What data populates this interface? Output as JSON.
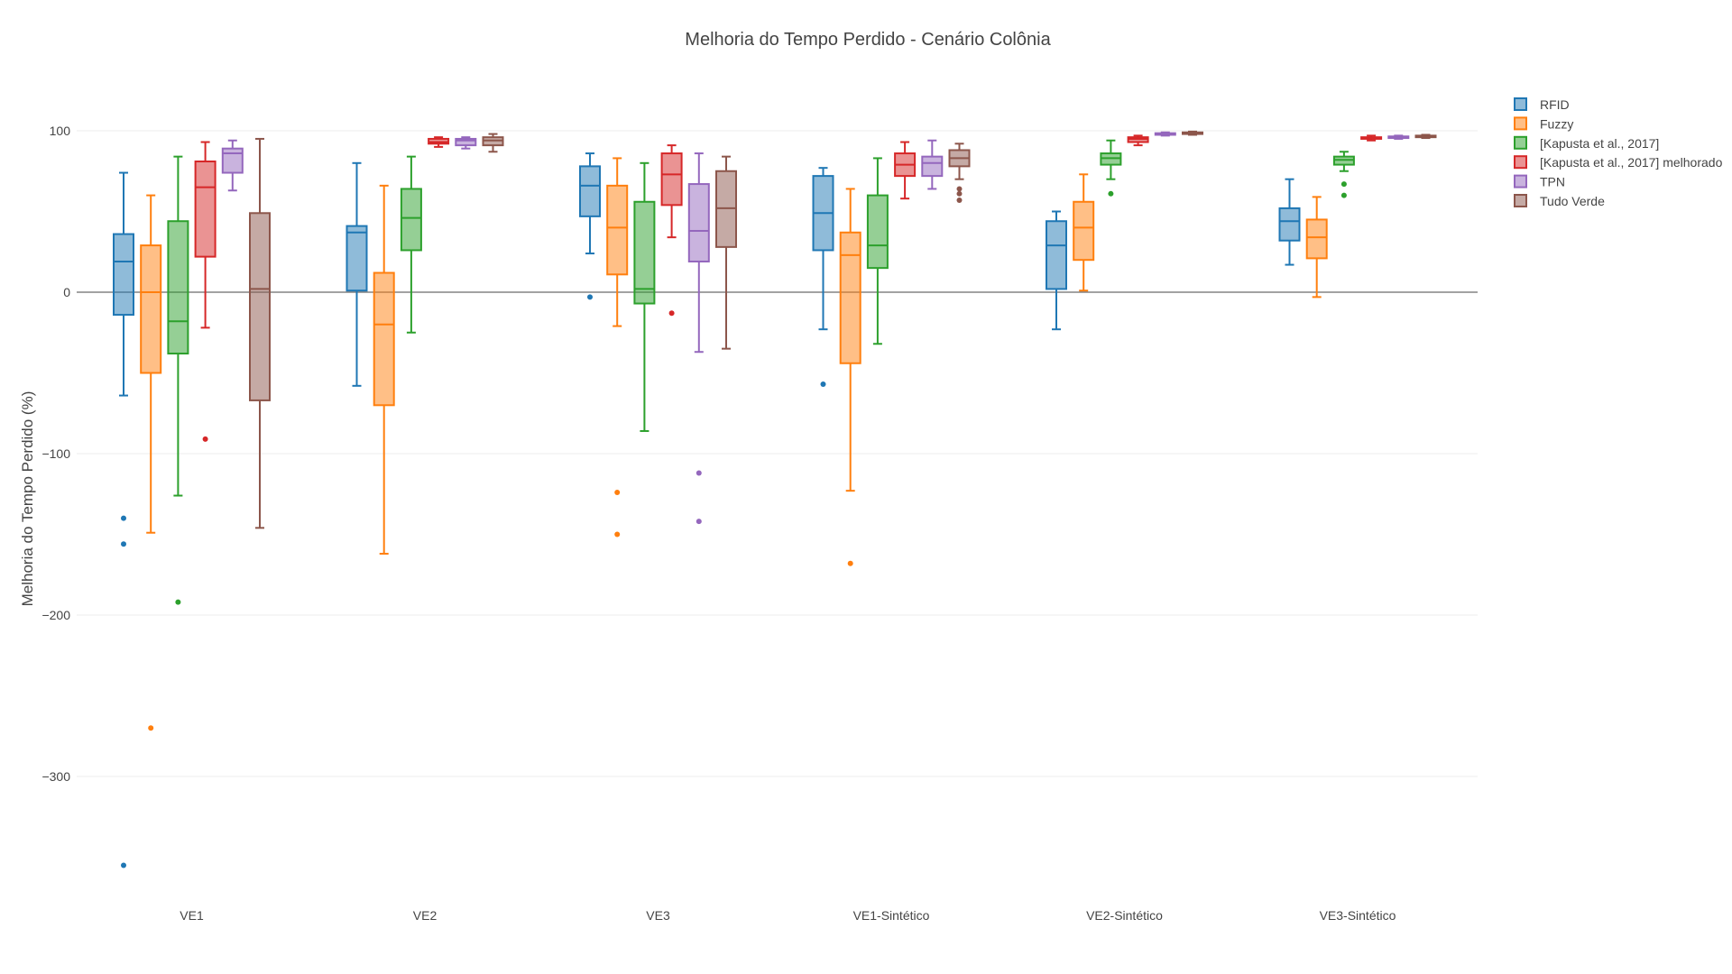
{
  "chart_data": {
    "type": "box",
    "title": "Melhoria do Tempo Perdido - Cenário Colônia",
    "xlabel": "",
    "ylabel": "Melhoria do Tempo Perdido (%)",
    "ylim": [
      -370,
      115
    ],
    "yticks": [
      100,
      0,
      -100,
      -200,
      -300
    ],
    "ytick_labels": [
      "100",
      "0",
      "−100",
      "−200",
      "−300"
    ],
    "grid": true,
    "legend_position": "top-right",
    "categories": [
      "VE1",
      "VE2",
      "VE3",
      "VE1-Sintético",
      "VE2-Sintético",
      "VE3-Sintético"
    ],
    "series": [
      {
        "name": "RFID",
        "color": "#1f77b4",
        "boxes": [
          {
            "category": "VE1",
            "lower_whisker": -64,
            "q1": -14,
            "median": 19,
            "q3": 36,
            "upper_whisker": 74,
            "outliers": [
              -140,
              -156,
              -355
            ]
          },
          {
            "category": "VE2",
            "lower_whisker": -58,
            "q1": 1,
            "median": 37,
            "q3": 41,
            "upper_whisker": 80,
            "outliers": []
          },
          {
            "category": "VE3",
            "lower_whisker": 24,
            "q1": 47,
            "median": 66,
            "q3": 78,
            "upper_whisker": 86,
            "outliers": [
              -3
            ]
          },
          {
            "category": "VE1-Sintético",
            "lower_whisker": -23,
            "q1": 26,
            "median": 49,
            "q3": 72,
            "upper_whisker": 77,
            "outliers": [
              -57
            ]
          },
          {
            "category": "VE2-Sintético",
            "lower_whisker": -23,
            "q1": 2,
            "median": 29,
            "q3": 44,
            "upper_whisker": 50,
            "outliers": []
          },
          {
            "category": "VE3-Sintético",
            "lower_whisker": 17,
            "q1": 32,
            "median": 44,
            "q3": 52,
            "upper_whisker": 70,
            "outliers": []
          }
        ]
      },
      {
        "name": "Fuzzy",
        "color": "#ff7f0e",
        "boxes": [
          {
            "category": "VE1",
            "lower_whisker": -149,
            "q1": -50,
            "median": 0,
            "q3": 29,
            "upper_whisker": 60,
            "outliers": [
              -270
            ]
          },
          {
            "category": "VE2",
            "lower_whisker": -162,
            "q1": -70,
            "median": -20,
            "q3": 12,
            "upper_whisker": 66,
            "outliers": []
          },
          {
            "category": "VE3",
            "lower_whisker": -21,
            "q1": 11,
            "median": 40,
            "q3": 66,
            "upper_whisker": 83,
            "outliers": [
              -124,
              -150
            ]
          },
          {
            "category": "VE1-Sintético",
            "lower_whisker": -123,
            "q1": -44,
            "median": 23,
            "q3": 37,
            "upper_whisker": 64,
            "outliers": [
              -168
            ]
          },
          {
            "category": "VE2-Sintético",
            "lower_whisker": 1,
            "q1": 20,
            "median": 40,
            "q3": 56,
            "upper_whisker": 73,
            "outliers": []
          },
          {
            "category": "VE3-Sintético",
            "lower_whisker": -3,
            "q1": 21,
            "median": 34,
            "q3": 45,
            "upper_whisker": 59,
            "outliers": []
          }
        ]
      },
      {
        "name": "[Kapusta et al., 2017]",
        "color": "#2ca02c",
        "boxes": [
          {
            "category": "VE1",
            "lower_whisker": -126,
            "q1": -38,
            "median": -18,
            "q3": 44,
            "upper_whisker": 84,
            "outliers": [
              -192
            ]
          },
          {
            "category": "VE2",
            "lower_whisker": -25,
            "q1": 26,
            "median": 46,
            "q3": 64,
            "upper_whisker": 84,
            "outliers": []
          },
          {
            "category": "VE3",
            "lower_whisker": -86,
            "q1": -7,
            "median": 2,
            "q3": 56,
            "upper_whisker": 80,
            "outliers": []
          },
          {
            "category": "VE1-Sintético",
            "lower_whisker": -32,
            "q1": 15,
            "median": 29,
            "q3": 60,
            "upper_whisker": 83,
            "outliers": []
          },
          {
            "category": "VE2-Sintético",
            "lower_whisker": 70,
            "q1": 79,
            "median": 83,
            "q3": 86,
            "upper_whisker": 94,
            "outliers": [
              61
            ]
          },
          {
            "category": "VE3-Sintético",
            "lower_whisker": 75,
            "q1": 79,
            "median": 82,
            "q3": 84,
            "upper_whisker": 87,
            "outliers": [
              67,
              60
            ]
          }
        ]
      },
      {
        "name": "[Kapusta et al., 2017] melhorado",
        "color": "#d62728",
        "boxes": [
          {
            "category": "VE1",
            "lower_whisker": -22,
            "q1": 22,
            "median": 65,
            "q3": 81,
            "upper_whisker": 93,
            "outliers": [
              -91
            ]
          },
          {
            "category": "VE2",
            "lower_whisker": 90,
            "q1": 92,
            "median": 93,
            "q3": 95,
            "upper_whisker": 96,
            "outliers": []
          },
          {
            "category": "VE3",
            "lower_whisker": 34,
            "q1": 54,
            "median": 73,
            "q3": 86,
            "upper_whisker": 91,
            "outliers": [
              -13
            ]
          },
          {
            "category": "VE1-Sintético",
            "lower_whisker": 58,
            "q1": 72,
            "median": 79,
            "q3": 86,
            "upper_whisker": 93,
            "outliers": []
          },
          {
            "category": "VE2-Sintético",
            "lower_whisker": 91,
            "q1": 93,
            "median": 95,
            "q3": 96,
            "upper_whisker": 97,
            "outliers": []
          },
          {
            "category": "VE3-Sintético",
            "lower_whisker": 94,
            "q1": 95,
            "median": 95.5,
            "q3": 96,
            "upper_whisker": 97,
            "outliers": []
          }
        ]
      },
      {
        "name": "TPN",
        "color": "#9467bd",
        "boxes": [
          {
            "category": "VE1",
            "lower_whisker": 63,
            "q1": 74,
            "median": 86,
            "q3": 89,
            "upper_whisker": 94,
            "outliers": []
          },
          {
            "category": "VE2",
            "lower_whisker": 89,
            "q1": 91,
            "median": 94,
            "q3": 95,
            "upper_whisker": 96,
            "outliers": []
          },
          {
            "category": "VE3",
            "lower_whisker": -37,
            "q1": 19,
            "median": 38,
            "q3": 67,
            "upper_whisker": 86,
            "outliers": [
              -112,
              -142
            ]
          },
          {
            "category": "VE1-Sintético",
            "lower_whisker": 64,
            "q1": 72,
            "median": 80,
            "q3": 84,
            "upper_whisker": 94,
            "outliers": []
          },
          {
            "category": "VE2-Sintético",
            "lower_whisker": 97,
            "q1": 97.5,
            "median": 98,
            "q3": 98.5,
            "upper_whisker": 99,
            "outliers": []
          },
          {
            "category": "VE3-Sintético",
            "lower_whisker": 95,
            "q1": 95.5,
            "median": 96,
            "q3": 96.5,
            "upper_whisker": 97,
            "outliers": []
          }
        ]
      },
      {
        "name": "Tudo Verde",
        "color": "#8c564b",
        "boxes": [
          {
            "category": "VE1",
            "lower_whisker": -146,
            "q1": -67,
            "median": 2,
            "q3": 49,
            "upper_whisker": 95,
            "outliers": []
          },
          {
            "category": "VE2",
            "lower_whisker": 87,
            "q1": 91,
            "median": 94,
            "q3": 96,
            "upper_whisker": 98,
            "outliers": []
          },
          {
            "category": "VE3",
            "lower_whisker": -35,
            "q1": 28,
            "median": 52,
            "q3": 75,
            "upper_whisker": 84,
            "outliers": []
          },
          {
            "category": "VE1-Sintético",
            "lower_whisker": 70,
            "q1": 78,
            "median": 83,
            "q3": 88,
            "upper_whisker": 92,
            "outliers": [
              64,
              61,
              57
            ]
          },
          {
            "category": "VE2-Sintético",
            "lower_whisker": 97.5,
            "q1": 98,
            "median": 98.5,
            "q3": 99,
            "upper_whisker": 99.5,
            "outliers": []
          },
          {
            "category": "VE3-Sintético",
            "lower_whisker": 95.5,
            "q1": 96,
            "median": 96.5,
            "q3": 97,
            "upper_whisker": 97.5,
            "outliers": []
          }
        ]
      }
    ]
  }
}
